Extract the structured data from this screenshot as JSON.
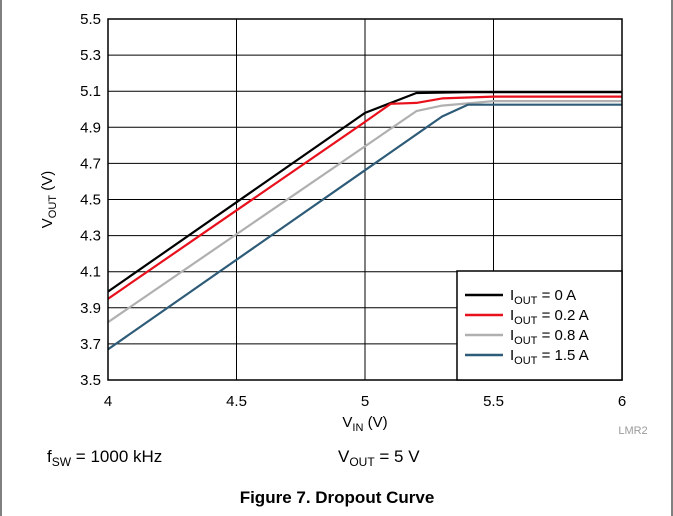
{
  "chart_data": {
    "type": "line",
    "xlabel": {
      "main": "V",
      "sub": "IN",
      "rest": " (V)"
    },
    "ylabel": {
      "main": "V",
      "sub": "OUT",
      "rest": " (V)"
    },
    "xlim": [
      4,
      6
    ],
    "ylim": [
      3.5,
      5.5
    ],
    "xticks": [
      "4",
      "4.5",
      "5",
      "5.5",
      "6"
    ],
    "yticks": [
      "3.5",
      "3.7",
      "3.9",
      "4.1",
      "4.3",
      "4.5",
      "4.7",
      "4.9",
      "5.1",
      "5.3",
      "5.5"
    ],
    "grid": true,
    "legend_position": "bottom-right",
    "series": [
      {
        "name": {
          "main": "I",
          "sub": "OUT",
          "rest": " = 0 A"
        },
        "color": "#000000",
        "x": [
          4.0,
          5.0,
          5.2,
          5.4,
          5.6,
          5.8,
          6.0
        ],
        "y": [
          3.99,
          4.98,
          5.09,
          5.095,
          5.095,
          5.095,
          5.095
        ]
      },
      {
        "name": {
          "main": "I",
          "sub": "OUT",
          "rest": " = 0.2 A"
        },
        "color": "#e8101c",
        "x": [
          4.0,
          5.0,
          5.1,
          5.2,
          5.3,
          5.5,
          5.65,
          6.0
        ],
        "y": [
          3.95,
          4.93,
          5.03,
          5.035,
          5.06,
          5.07,
          5.07,
          5.07
        ]
      },
      {
        "name": {
          "main": "I",
          "sub": "OUT",
          "rest": " = 0.8 A"
        },
        "color": "#b0b0b0",
        "x": [
          4.0,
          5.2,
          5.3,
          5.5,
          6.0
        ],
        "y": [
          3.82,
          4.99,
          5.02,
          5.045,
          5.045
        ]
      },
      {
        "name": {
          "main": "I",
          "sub": "OUT",
          "rest": " = 1.5 A"
        },
        "color": "#2e5c78",
        "x": [
          4.0,
          5.3,
          5.4,
          6.0
        ],
        "y": [
          3.67,
          4.96,
          5.025,
          5.025
        ]
      }
    ]
  },
  "conditions": {
    "fsw": {
      "main": "f",
      "sub": "SW",
      "rest": " = 1000 kHz"
    },
    "vout": {
      "main": "V",
      "sub": "OUT",
      "rest": " = 5 V"
    }
  },
  "figure_code": "LMR2",
  "caption": "Figure 7. Dropout Curve"
}
